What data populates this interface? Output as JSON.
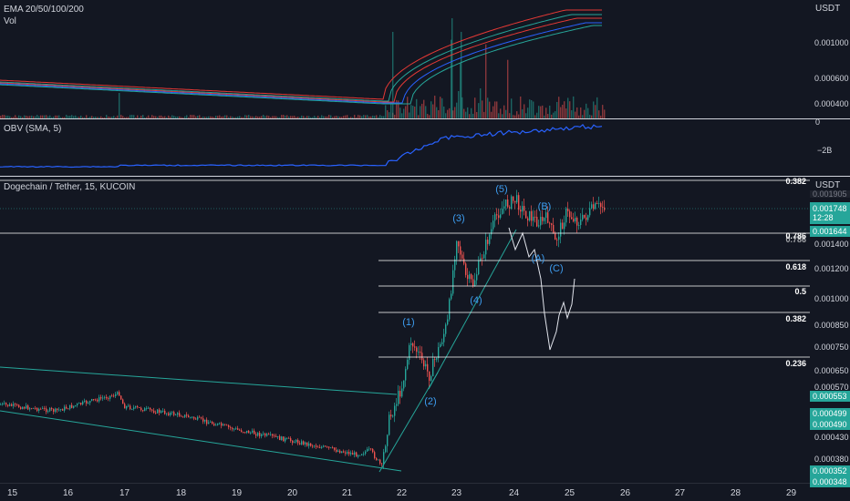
{
  "indicators": {
    "ema_title": "EMA 20/50/100/200",
    "vol_title": "Vol",
    "obv_title": "OBV (SMA, 5)",
    "obv_zero": "0",
    "obv_neg": "−2B"
  },
  "main": {
    "symbol_title": "Dogechain / Tether, 15, KUCOIN",
    "currency": "USDT"
  },
  "top_axis": {
    "currency": "USDT",
    "ticks": [
      "0.001000",
      "0.000600",
      "0.000400"
    ]
  },
  "price_axis": {
    "ticks": [
      "0.001400",
      "0.001200",
      "0.001000",
      "0.000850",
      "0.000750",
      "0.000650",
      "0.000570",
      "0.000430",
      "0.000380"
    ]
  },
  "badges": {
    "last_price": "0.001748",
    "countdown": "12:28",
    "b1": "0.001644",
    "b2": "0.000553",
    "b3": "0.000499",
    "b4": "0.000490",
    "b5": "0.000352",
    "b6": "0.000348",
    "cut_top": "0.001905"
  },
  "fib_levels": [
    "0.382",
    "0.786",
    "0.618",
    "0.5",
    "0.382",
    "0.236"
  ],
  "fib_extra": "0.786",
  "wave_labels": [
    "(1)",
    "(2)",
    "(3)",
    "(4)",
    "(5)",
    "(A)",
    "(B)",
    "(C)"
  ],
  "time_axis": [
    "15",
    "16",
    "17",
    "18",
    "19",
    "20",
    "21",
    "22",
    "23",
    "24",
    "25",
    "26",
    "27",
    "28",
    "29"
  ],
  "colors": {
    "background": "#131722",
    "ema_red": "#e53935",
    "ema_green": "#26a69a",
    "ema_blue": "#2962ff",
    "obv": "#2962ff",
    "teal_badge": "#26a69a",
    "candle_up": "#26a69a",
    "candle_down": "#ef5350",
    "wave_label": "#3d9df0"
  }
}
